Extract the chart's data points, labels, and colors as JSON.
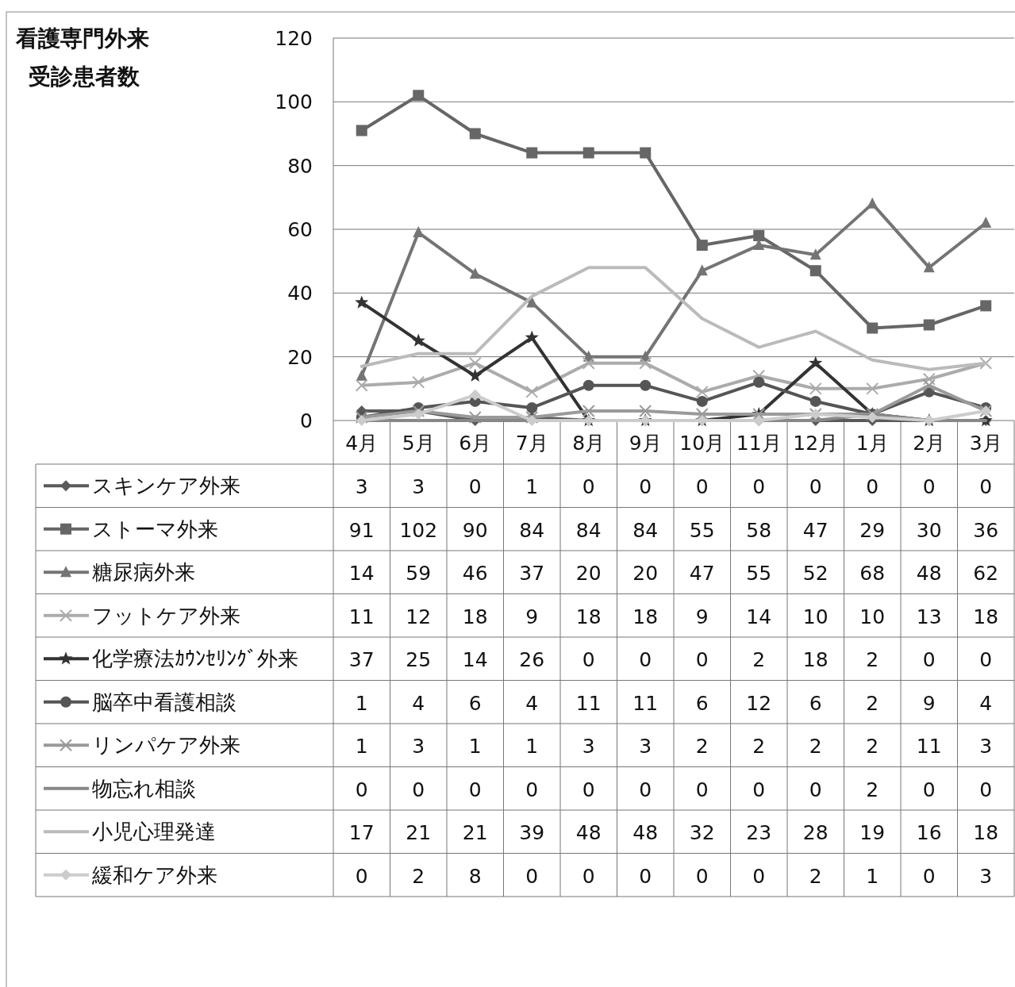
{
  "chart_data": {
    "type": "line",
    "title": "看護専門外来",
    "subtitle": "受診患者数",
    "categories": [
      "4月",
      "5月",
      "6月",
      "7月",
      "8月",
      "9月",
      "10月",
      "11月",
      "12月",
      "1月",
      "2月",
      "3月"
    ],
    "ylim": [
      0,
      120
    ],
    "yticks": [
      0,
      20,
      40,
      60,
      80,
      100,
      120
    ],
    "grid": "y",
    "legend": "bottom",
    "data_labels": true,
    "series": [
      {
        "name": "スキンケア外来",
        "color": "#5a5a5a",
        "marker": "diamond",
        "values": [
          3,
          3,
          0,
          1,
          0,
          0,
          0,
          0,
          0,
          0,
          0,
          0
        ]
      },
      {
        "name": "ストーマ外来",
        "color": "#666666",
        "marker": "square",
        "values": [
          91,
          102,
          90,
          84,
          84,
          84,
          55,
          58,
          47,
          29,
          30,
          36
        ]
      },
      {
        "name": "糖尿病外来",
        "color": "#747474",
        "marker": "triangle",
        "values": [
          14,
          59,
          46,
          37,
          20,
          20,
          47,
          55,
          52,
          68,
          48,
          62
        ]
      },
      {
        "name": "フットケア外来",
        "color": "#ababab",
        "marker": "cross",
        "values": [
          11,
          12,
          18,
          9,
          18,
          18,
          9,
          14,
          10,
          10,
          13,
          18
        ]
      },
      {
        "name": "化学療法ｶｳﾝｾﾘﾝｸﾞ外来",
        "color": "#333333",
        "marker": "star",
        "values": [
          37,
          25,
          14,
          26,
          0,
          0,
          0,
          2,
          18,
          2,
          0,
          0
        ]
      },
      {
        "name": "脳卒中看護相談",
        "color": "#555555",
        "marker": "circle",
        "values": [
          1,
          4,
          6,
          4,
          11,
          11,
          6,
          12,
          6,
          2,
          9,
          4
        ]
      },
      {
        "name": "リンパケア外来",
        "color": "#9a9a9a",
        "marker": "cross",
        "values": [
          1,
          3,
          1,
          1,
          3,
          3,
          2,
          2,
          2,
          2,
          11,
          3
        ]
      },
      {
        "name": "物忘れ相談",
        "color": "#888888",
        "marker": "none",
        "values": [
          0,
          0,
          0,
          0,
          0,
          0,
          0,
          0,
          0,
          2,
          0,
          0
        ]
      },
      {
        "name": "小児心理発達",
        "color": "#bbbbbb",
        "marker": "none",
        "values": [
          17,
          21,
          21,
          39,
          48,
          48,
          32,
          23,
          28,
          19,
          16,
          18
        ]
      },
      {
        "name": "緩和ケア外来",
        "color": "#cccccc",
        "marker": "diamond",
        "values": [
          0,
          2,
          8,
          0,
          0,
          0,
          0,
          0,
          2,
          1,
          0,
          3
        ]
      }
    ]
  }
}
